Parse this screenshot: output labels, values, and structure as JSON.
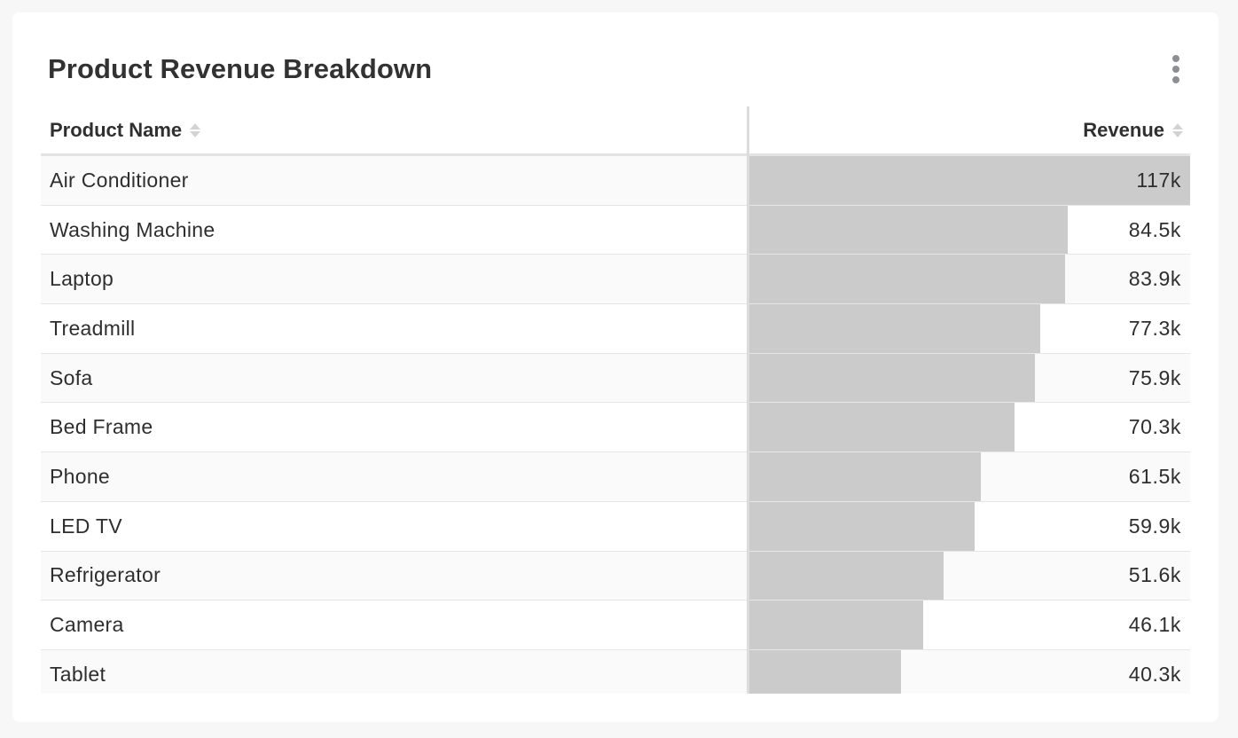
{
  "widget": {
    "title": "Product Revenue Breakdown",
    "menu_icon": "vertical-ellipsis-icon"
  },
  "table": {
    "columns": [
      {
        "label": "Product Name",
        "sort_icon": "sort-icon"
      },
      {
        "label": "Revenue",
        "sort_icon": "sort-icon"
      }
    ],
    "bar_color": "#cbcbcb",
    "rows": [
      {
        "name": "Air Conditioner",
        "revenue": 117000,
        "revenue_label": "117k"
      },
      {
        "name": "Washing Machine",
        "revenue": 84500,
        "revenue_label": "84.5k"
      },
      {
        "name": "Laptop",
        "revenue": 83900,
        "revenue_label": "83.9k"
      },
      {
        "name": "Treadmill",
        "revenue": 77300,
        "revenue_label": "77.3k"
      },
      {
        "name": "Sofa",
        "revenue": 75900,
        "revenue_label": "75.9k"
      },
      {
        "name": "Bed Frame",
        "revenue": 70300,
        "revenue_label": "70.3k"
      },
      {
        "name": "Phone",
        "revenue": 61500,
        "revenue_label": "61.5k"
      },
      {
        "name": "LED TV",
        "revenue": 59900,
        "revenue_label": "59.9k"
      },
      {
        "name": "Refrigerator",
        "revenue": 51600,
        "revenue_label": "51.6k"
      },
      {
        "name": "Camera",
        "revenue": 46100,
        "revenue_label": "46.1k"
      },
      {
        "name": "Tablet",
        "revenue": 40300,
        "revenue_label": "40.3k"
      }
    ]
  }
}
